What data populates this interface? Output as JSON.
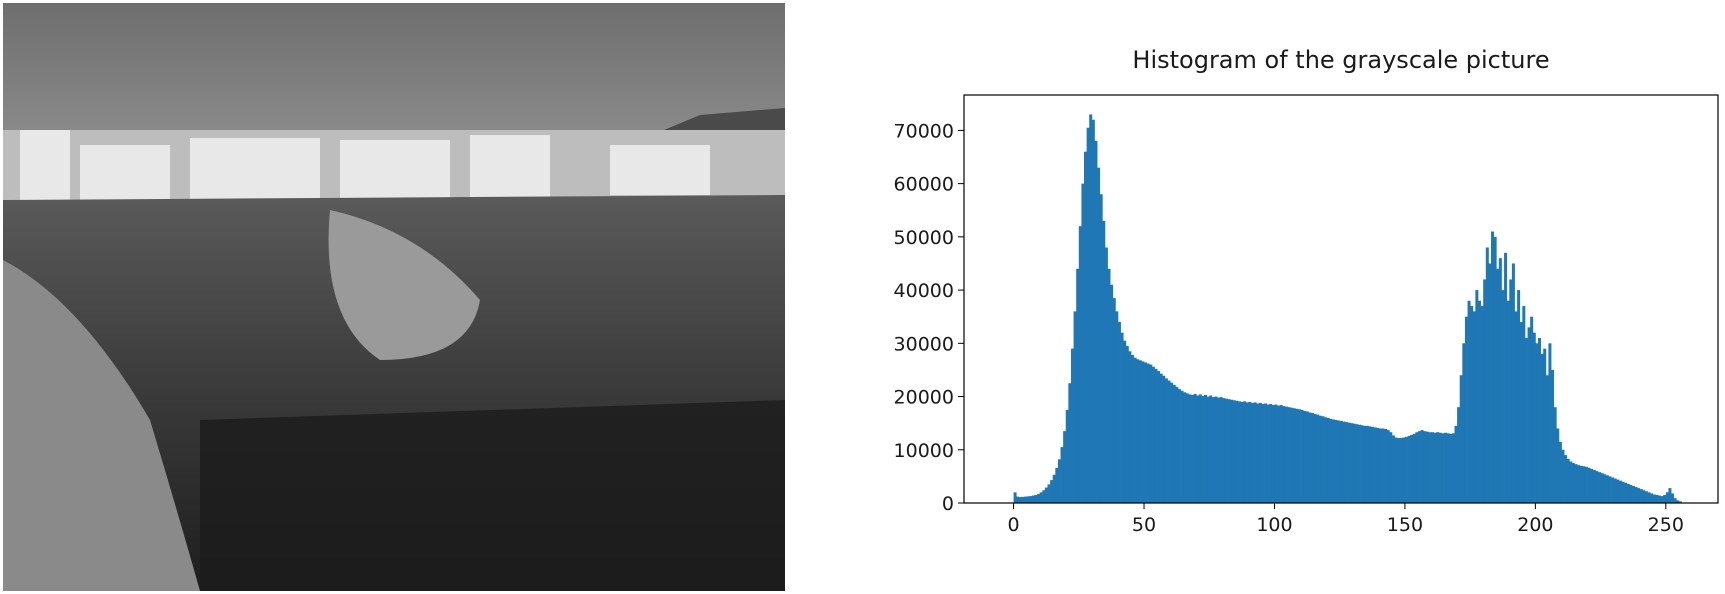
{
  "chart_data": {
    "type": "histogram",
    "title": "Histogram of the grayscale picture",
    "color": "#1f77b4",
    "bins": [
      0,
      1,
      2,
      3,
      4,
      5,
      6,
      7,
      8,
      9,
      10,
      11,
      12,
      13,
      14,
      15,
      16,
      17,
      18,
      19,
      20,
      21,
      22,
      23,
      24,
      25,
      26,
      27,
      28,
      29,
      30,
      31,
      32,
      33,
      34,
      35,
      36,
      37,
      38,
      39,
      40,
      41,
      42,
      43,
      44,
      45,
      46,
      47,
      48,
      49,
      50,
      51,
      52,
      53,
      54,
      55,
      56,
      57,
      58,
      59,
      60,
      61,
      62,
      63,
      64,
      65,
      66,
      67,
      68,
      69,
      70,
      71,
      72,
      73,
      74,
      75,
      76,
      77,
      78,
      79,
      80,
      81,
      82,
      83,
      84,
      85,
      86,
      87,
      88,
      89,
      90,
      91,
      92,
      93,
      94,
      95,
      96,
      97,
      98,
      99,
      100,
      101,
      102,
      103,
      104,
      105,
      106,
      107,
      108,
      109,
      110,
      111,
      112,
      113,
      114,
      115,
      116,
      117,
      118,
      119,
      120,
      121,
      122,
      123,
      124,
      125,
      126,
      127,
      128,
      129,
      130,
      131,
      132,
      133,
      134,
      135,
      136,
      137,
      138,
      139,
      140,
      141,
      142,
      143,
      144,
      145,
      146,
      147,
      148,
      149,
      150,
      151,
      152,
      153,
      154,
      155,
      156,
      157,
      158,
      159,
      160,
      161,
      162,
      163,
      164,
      165,
      166,
      167,
      168,
      169,
      170,
      171,
      172,
      173,
      174,
      175,
      176,
      177,
      178,
      179,
      180,
      181,
      182,
      183,
      184,
      185,
      186,
      187,
      188,
      189,
      190,
      191,
      192,
      193,
      194,
      195,
      196,
      197,
      198,
      199,
      200,
      201,
      202,
      203,
      204,
      205,
      206,
      207,
      208,
      209,
      210,
      211,
      212,
      213,
      214,
      215,
      216,
      217,
      218,
      219,
      220,
      221,
      222,
      223,
      224,
      225,
      226,
      227,
      228,
      229,
      230,
      231,
      232,
      233,
      234,
      235,
      236,
      237,
      238,
      239,
      240,
      241,
      242,
      243,
      244,
      245,
      246,
      247,
      248,
      249,
      250,
      251,
      252,
      253,
      254,
      255,
      256
    ],
    "values": [
      2000,
      1200,
      1100,
      1150,
      1200,
      1250,
      1300,
      1400,
      1500,
      1700,
      2000,
      2400,
      2900,
      3500,
      4300,
      5300,
      6600,
      8200,
      10500,
      13500,
      17500,
      22500,
      29000,
      36000,
      44000,
      52000,
      60000,
      66000,
      70500,
      73000,
      72000,
      68000,
      63000,
      58000,
      53000,
      48000,
      44000,
      41000,
      38500,
      36000,
      34000,
      32000,
      30500,
      29500,
      28500,
      27800,
      27300,
      27000,
      26800,
      26600,
      26400,
      26200,
      26000,
      25600,
      25200,
      24800,
      24300,
      23900,
      23400,
      23000,
      22600,
      22200,
      21800,
      21400,
      21100,
      20800,
      20600,
      20400,
      20300,
      20500,
      20200,
      20400,
      20100,
      20300,
      20000,
      20200,
      19900,
      20000,
      19800,
      19900,
      19700,
      19600,
      19500,
      19400,
      19300,
      19200,
      19100,
      19000,
      19100,
      18900,
      19000,
      18800,
      18900,
      18700,
      18800,
      18600,
      18700,
      18500,
      18600,
      18400,
      18500,
      18300,
      18400,
      18200,
      18100,
      18000,
      17900,
      17800,
      17700,
      17600,
      17500,
      17300,
      17200,
      17000,
      16900,
      16700,
      16600,
      16400,
      16300,
      16100,
      16000,
      15800,
      15700,
      15600,
      15500,
      15400,
      15300,
      15200,
      15100,
      15000,
      14900,
      14800,
      14700,
      14600,
      14500,
      14500,
      14400,
      14300,
      14200,
      14100,
      14000,
      14000,
      13900,
      13700,
      13300,
      12700,
      12300,
      12200,
      12200,
      12300,
      12400,
      12600,
      12800,
      13000,
      13300,
      13500,
      13700,
      13500,
      13400,
      13300,
      13300,
      13200,
      13300,
      13200,
      13100,
      13200,
      13100,
      13000,
      13100,
      14500,
      18000,
      24000,
      30000,
      35000,
      38000,
      37000,
      36000,
      40000,
      38000,
      37000,
      42000,
      48000,
      45000,
      51000,
      50000,
      44000,
      46000,
      40000,
      47000,
      38000,
      42000,
      45000,
      36000,
      40000,
      34000,
      37000,
      31000,
      33000,
      35000,
      32000,
      30000,
      31000,
      28000,
      29000,
      24000,
      30000,
      25000,
      18000,
      14000,
      11500,
      10000,
      9000,
      8300,
      7800,
      7500,
      7300,
      7100,
      7000,
      6900,
      6800,
      6600,
      6400,
      6200,
      6000,
      5800,
      5600,
      5400,
      5200,
      5000,
      4800,
      4600,
      4400,
      4200,
      4000,
      3800,
      3600,
      3400,
      3200,
      3000,
      2800,
      2600,
      2400,
      2200,
      2000,
      1800,
      1600,
      1500,
      1400,
      1300,
      1500,
      2000,
      2800,
      1800,
      900,
      500,
      300
    ],
    "xlim": [
      -19,
      270
    ],
    "ylim": [
      0,
      76650
    ],
    "xticks": [
      0,
      50,
      100,
      150,
      200,
      250
    ],
    "yticks": [
      0,
      10000,
      20000,
      30000,
      40000,
      50000,
      60000,
      70000
    ]
  }
}
